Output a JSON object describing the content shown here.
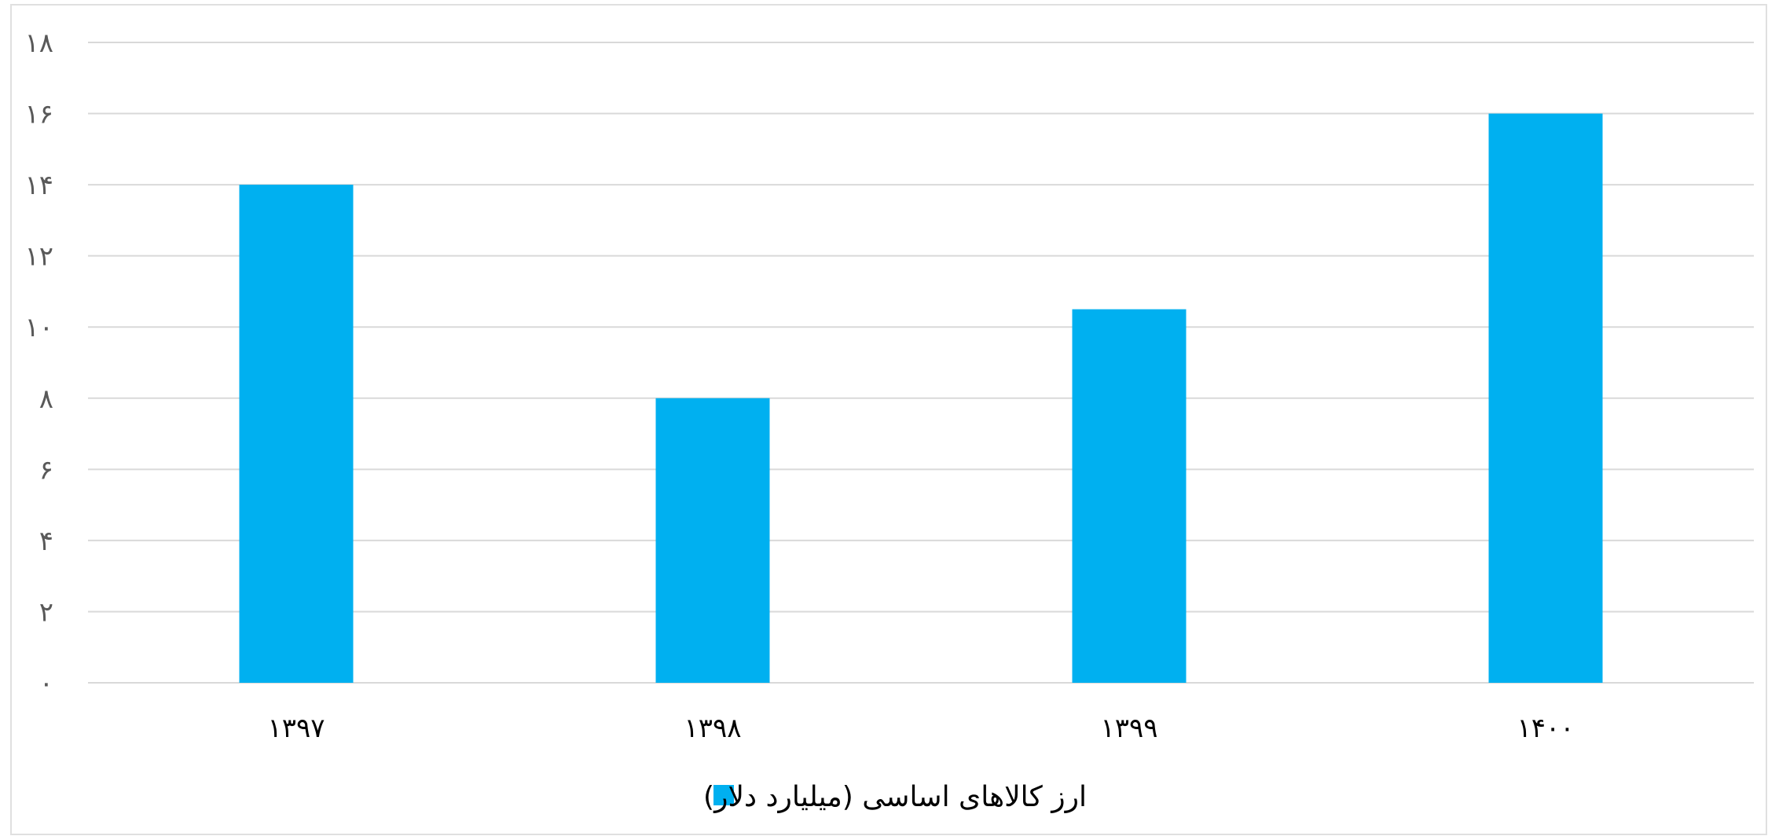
{
  "chart_data": {
    "type": "bar",
    "categories": [
      "۱۳۹۷",
      "۱۳۹۸",
      "۱۳۹۹",
      "۱۴۰۰"
    ],
    "series": [
      {
        "name": "ارز کالاهای اساسی (میلیارد دلار)",
        "values": [
          14,
          8,
          10.5,
          16
        ],
        "color": "#00B0F0"
      }
    ],
    "ylim": [
      0,
      18
    ],
    "yticks": [
      0,
      2,
      4,
      6,
      8,
      10,
      12,
      14,
      16,
      18
    ],
    "ytick_labels": [
      "۰",
      "۲",
      "۴",
      "۶",
      "۸",
      "۱۰",
      "۱۲",
      "۱۴",
      "۱۶",
      "۱۸"
    ],
    "grid": true,
    "legend_position": "bottom",
    "colors": {
      "gridline": "#D9D9D9",
      "frame": "#E0E0E0"
    }
  }
}
